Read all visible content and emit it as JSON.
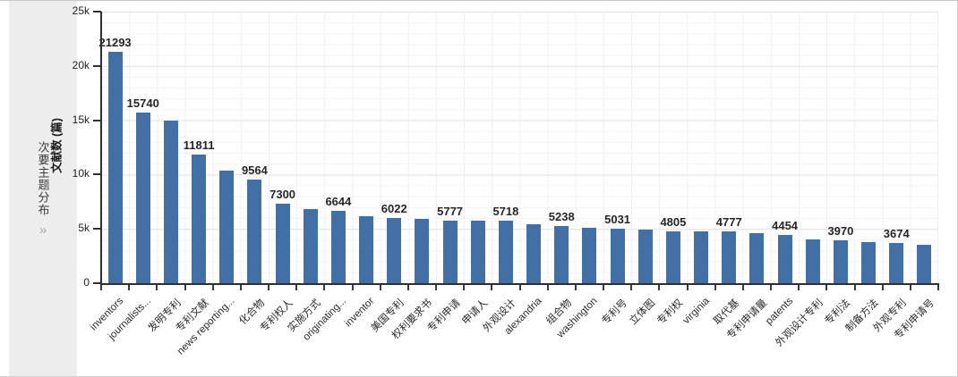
{
  "sidebar": {
    "title": "次要主题分布",
    "expand_icon": "»"
  },
  "chart_data": {
    "type": "bar",
    "title": "",
    "xlabel": "",
    "ylabel": "文献数 (篇)",
    "ylim": [
      0,
      25000
    ],
    "y_tick_labels": [
      "0",
      "5k",
      "10k",
      "15k",
      "20k",
      "25k"
    ],
    "grid": true,
    "legend": false,
    "bar_color": "#4270a4",
    "bars": [
      {
        "label": "inventors",
        "value": 21293,
        "show_value": true
      },
      {
        "label": "journalists...",
        "value": 15740,
        "show_value": true
      },
      {
        "label": "发明专利",
        "value": 15000,
        "show_value": false
      },
      {
        "label": "专利文献",
        "value": 11811,
        "show_value": true
      },
      {
        "label": "news reporting...",
        "value": 10400,
        "show_value": false
      },
      {
        "label": "化合物",
        "value": 9564,
        "show_value": true
      },
      {
        "label": "专利权人",
        "value": 7300,
        "show_value": true
      },
      {
        "label": "实施方式",
        "value": 6800,
        "show_value": false
      },
      {
        "label": "originating...",
        "value": 6644,
        "show_value": true
      },
      {
        "label": "inventor",
        "value": 6150,
        "show_value": false
      },
      {
        "label": "美国专利",
        "value": 6022,
        "show_value": true
      },
      {
        "label": "权利要求书",
        "value": 5900,
        "show_value": false
      },
      {
        "label": "专利申请",
        "value": 5777,
        "show_value": true
      },
      {
        "label": "申请人",
        "value": 5750,
        "show_value": false
      },
      {
        "label": "外观设计",
        "value": 5718,
        "show_value": true
      },
      {
        "label": "alexandria",
        "value": 5400,
        "show_value": false
      },
      {
        "label": "组合物",
        "value": 5238,
        "show_value": true
      },
      {
        "label": "washington",
        "value": 5100,
        "show_value": false
      },
      {
        "label": "专利号",
        "value": 5031,
        "show_value": true
      },
      {
        "label": "立体图",
        "value": 4900,
        "show_value": false
      },
      {
        "label": "专利权",
        "value": 4805,
        "show_value": true
      },
      {
        "label": "virginia",
        "value": 4790,
        "show_value": false
      },
      {
        "label": "取代基",
        "value": 4777,
        "show_value": true
      },
      {
        "label": "专利申请量",
        "value": 4600,
        "show_value": false
      },
      {
        "label": "patents",
        "value": 4454,
        "show_value": true
      },
      {
        "label": "外观设计专利",
        "value": 4000,
        "show_value": false
      },
      {
        "label": "专利法",
        "value": 3970,
        "show_value": true
      },
      {
        "label": "制备方法",
        "value": 3800,
        "show_value": false
      },
      {
        "label": "外观专利",
        "value": 3674,
        "show_value": true
      },
      {
        "label": "专利申请号",
        "value": 3500,
        "show_value": false
      }
    ]
  }
}
